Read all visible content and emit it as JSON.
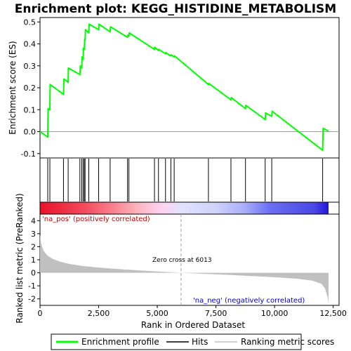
{
  "chart_data": {
    "type": "line",
    "title": "Enrichment plot: KEGG_HISTIDINE_METABOLISM",
    "top_panel": {
      "ylabel": "Enrichment score (ES)",
      "ylim": [
        -0.12,
        0.52
      ],
      "yticks": [
        "-0.1",
        "0.0",
        "0.1",
        "0.2",
        "0.3",
        "0.4",
        "0.5"
      ],
      "ytick_values": [
        -0.1,
        0.0,
        0.1,
        0.2,
        0.3,
        0.4,
        0.5
      ],
      "series_name": "Enrichment profile",
      "line_color": "#00ff00",
      "es_x": [
        0,
        330,
        345,
        420,
        430,
        1000,
        1020,
        1200,
        1210,
        1700,
        1720,
        1780,
        1790,
        1840,
        1850,
        1890,
        1905,
        1920,
        1935,
        2080,
        2095,
        2500,
        2515,
        2990,
        3005,
        3730,
        3745,
        3790,
        3805,
        4880,
        4895,
        5050,
        5065,
        5350,
        5365,
        5580,
        5595,
        5720,
        5735,
        7180,
        7195,
        8140,
        8155,
        8760,
        8775,
        9600,
        9615,
        9880,
        9895,
        12050,
        12070,
        12300
      ],
      "es_y": [
        0.0,
        -0.025,
        0.105,
        0.1,
        0.215,
        0.17,
        0.24,
        0.225,
        0.29,
        0.26,
        0.3,
        0.29,
        0.34,
        0.33,
        0.38,
        0.375,
        0.42,
        0.415,
        0.465,
        0.45,
        0.49,
        0.465,
        0.49,
        0.455,
        0.478,
        0.43,
        0.44,
        0.435,
        0.45,
        0.375,
        0.385,
        0.37,
        0.375,
        0.355,
        0.36,
        0.345,
        0.35,
        0.34,
        0.345,
        0.215,
        0.22,
        0.145,
        0.155,
        0.105,
        0.12,
        0.055,
        0.085,
        0.07,
        0.093,
        -0.085,
        0.015,
        0.002
      ]
    },
    "hits": [
      330,
      420,
      1000,
      1200,
      1700,
      1780,
      1840,
      1890,
      1920,
      2080,
      2500,
      2990,
      3730,
      3790,
      4880,
      5050,
      5350,
      5580,
      5720,
      7180,
      8140,
      8760,
      9600,
      9880,
      12050
    ],
    "ranked_panel": {
      "ylabel": "Ranked list metric (PreRanked)",
      "ylim": [
        -2.5,
        4.5
      ],
      "yticks": [
        "-2",
        "-1",
        "0",
        "1",
        "2",
        "3",
        "4"
      ],
      "ytick_values": [
        -2,
        -1,
        0,
        1,
        2,
        3,
        4
      ],
      "fill_color": "#c0c0c0",
      "metric_x": [
        0,
        50,
        150,
        300,
        500,
        800,
        1200,
        1800,
        2500,
        3500,
        4500,
        5500,
        6013,
        7000,
        8000,
        9000,
        10000,
        11000,
        11600,
        12000,
        12150,
        12250,
        12300
      ],
      "metric_y": [
        2.9,
        2.2,
        1.7,
        1.35,
        1.1,
        0.88,
        0.7,
        0.52,
        0.4,
        0.27,
        0.15,
        0.05,
        0.0,
        -0.08,
        -0.16,
        -0.25,
        -0.34,
        -0.46,
        -0.6,
        -0.85,
        -1.2,
        -1.8,
        -2.3
      ],
      "label_pos": "'na_pos' (positively correlated)",
      "label_neg": "'na_neg' (negatively correlated)",
      "zero_cross_label": "Zero cross at 6013",
      "zero_cross_x": 6013
    },
    "xaxis": {
      "label": "Rank in Ordered Dataset",
      "xlim": [
        0,
        12750
      ],
      "xticks": [
        "0",
        "2,500",
        "5,000",
        "7,500",
        "10,000",
        "12,500"
      ],
      "xtick_values": [
        0,
        2500,
        5000,
        7500,
        10000,
        12500
      ],
      "list_length": 12300
    },
    "gradient_bar": {
      "stops": [
        {
          "x": 0,
          "color": "#e8122a"
        },
        {
          "x": 1900,
          "color": "#f44a5c"
        },
        {
          "x": 3000,
          "color": "#fa7b8a"
        },
        {
          "x": 4100,
          "color": "#fdb1bc"
        },
        {
          "x": 5200,
          "color": "#fdd4f0"
        },
        {
          "x": 6100,
          "color": "#e0e2ff"
        },
        {
          "x": 7500,
          "color": "#cfd2fb"
        },
        {
          "x": 8700,
          "color": "#a9aefa"
        },
        {
          "x": 9800,
          "color": "#6a6ff2"
        },
        {
          "x": 11700,
          "color": "#4b46e6"
        },
        {
          "x": 12300,
          "color": "#1f16d6"
        }
      ]
    },
    "legend": {
      "placement": "bottom",
      "items": [
        {
          "label": "Enrichment profile",
          "color": "#00ff00"
        },
        {
          "label": "Hits",
          "color": "#000000"
        },
        {
          "label": "Ranking metric scores",
          "color": "#c0c0c0"
        }
      ]
    }
  }
}
